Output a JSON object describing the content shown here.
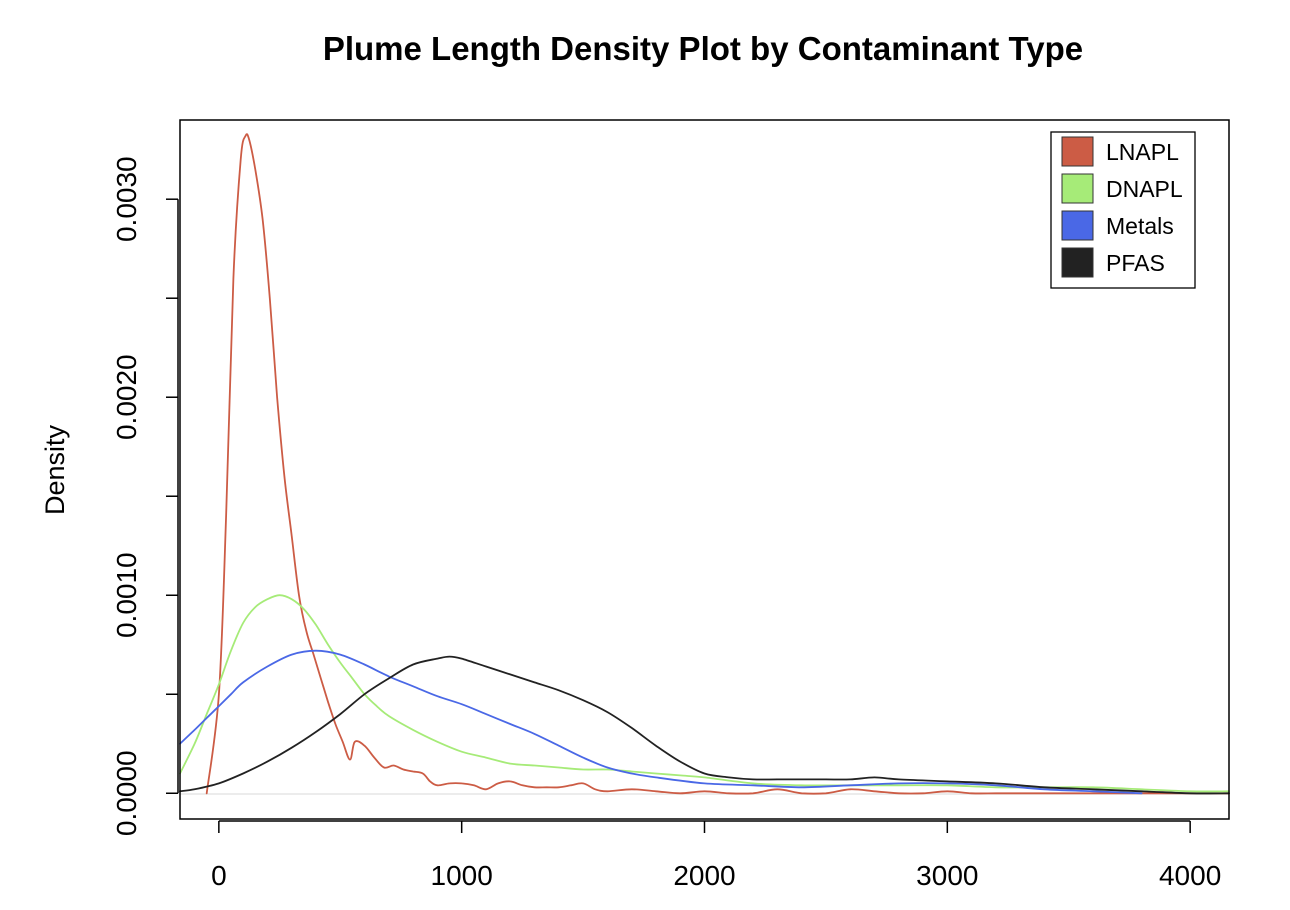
{
  "chart_data": {
    "type": "line",
    "title": "Plume Length Density Plot by Contaminant Type",
    "xlabel": "",
    "ylabel": "Density",
    "xlim": [
      -160,
      4160
    ],
    "ylim": [
      -0.00013,
      0.0034
    ],
    "x_ticks": [
      0,
      1000,
      2000,
      3000,
      4000
    ],
    "x_tick_labels": [
      "0",
      "1000",
      "2000",
      "3000",
      "4000"
    ],
    "y_ticks": [
      0.0,
      0.0005,
      0.001,
      0.0015,
      0.002,
      0.0025,
      0.003
    ],
    "y_tick_labels": [
      "0.0000",
      "",
      "0.0010",
      "",
      "0.0020",
      "",
      "0.0030"
    ],
    "grid": false,
    "zero_line": true,
    "legend_position": "top-right",
    "series": [
      {
        "name": "LNAPL",
        "color": "#CC5C45",
        "x": [
          -50,
          0,
          30,
          60,
          90,
          110,
          125,
          150,
          180,
          210,
          240,
          270,
          300,
          330,
          360,
          390,
          420,
          450,
          480,
          510,
          540,
          560,
          600,
          640,
          680,
          720,
          760,
          800,
          840,
          870,
          900,
          950,
          1000,
          1050,
          1100,
          1150,
          1200,
          1250,
          1300,
          1350,
          1400,
          1450,
          1500,
          1550,
          1600,
          1700,
          1800,
          1900,
          2000,
          2100,
          2200,
          2300,
          2400,
          2500,
          2600,
          2700,
          2800,
          2900,
          3000,
          3100,
          3200,
          3300,
          3400,
          3500,
          3600,
          3700,
          3800,
          4000,
          4160
        ],
        "y": [
          0.0,
          0.0005,
          0.0014,
          0.0026,
          0.0032,
          0.00332,
          0.0033,
          0.00315,
          0.0029,
          0.0025,
          0.002,
          0.0016,
          0.0013,
          0.001,
          0.00082,
          0.0007,
          0.00058,
          0.00046,
          0.00035,
          0.00026,
          0.00017,
          0.00026,
          0.00024,
          0.00018,
          0.00013,
          0.00014,
          0.00012,
          0.00011,
          0.0001,
          6e-05,
          4e-05,
          5e-05,
          5e-05,
          4e-05,
          2e-05,
          5e-05,
          6e-05,
          4e-05,
          3e-05,
          3e-05,
          3e-05,
          4e-05,
          5e-05,
          2e-05,
          1e-05,
          2e-05,
          1e-05,
          0.0,
          1e-05,
          0.0,
          0.0,
          2e-05,
          0.0,
          0.0,
          2e-05,
          1e-05,
          0.0,
          0.0,
          1e-05,
          0.0,
          0.0,
          0.0,
          0.0,
          0.0,
          0.0,
          0.0,
          0.0,
          0.0,
          0.0
        ]
      },
      {
        "name": "DNAPL",
        "color": "#A6EB78",
        "x": [
          -160,
          -100,
          -50,
          0,
          50,
          100,
          150,
          200,
          250,
          300,
          350,
          400,
          450,
          500,
          550,
          600,
          650,
          700,
          800,
          900,
          1000,
          1100,
          1200,
          1300,
          1400,
          1500,
          1600,
          1700,
          1800,
          1900,
          2000,
          2200,
          2400,
          2600,
          2800,
          3000,
          3200,
          3400,
          3600,
          3800,
          4000,
          4160
        ],
        "y": [
          0.0001,
          0.00025,
          0.0004,
          0.00055,
          0.00072,
          0.00086,
          0.00094,
          0.00098,
          0.001,
          0.00098,
          0.00093,
          0.00085,
          0.00075,
          0.00066,
          0.00058,
          0.0005,
          0.00044,
          0.00039,
          0.00032,
          0.00026,
          0.00021,
          0.00018,
          0.00015,
          0.00014,
          0.00013,
          0.00012,
          0.00012,
          0.00011,
          0.0001,
          9e-05,
          8e-05,
          5e-05,
          4e-05,
          4e-05,
          4e-05,
          4e-05,
          3e-05,
          3e-05,
          3e-05,
          2e-05,
          1e-05,
          1e-05
        ]
      },
      {
        "name": "Metals",
        "color": "#4A68E6",
        "x": [
          -160,
          -100,
          -50,
          0,
          50,
          100,
          200,
          300,
          400,
          500,
          600,
          700,
          800,
          900,
          1000,
          1100,
          1200,
          1300,
          1400,
          1500,
          1600,
          1700,
          1800,
          2000,
          2200,
          2400,
          2600,
          2800,
          3000,
          3200,
          3400,
          3600,
          3800
        ],
        "y": [
          0.00025,
          0.00032,
          0.00038,
          0.00044,
          0.0005,
          0.00056,
          0.00064,
          0.0007,
          0.00072,
          0.0007,
          0.00065,
          0.00059,
          0.00054,
          0.00049,
          0.00045,
          0.0004,
          0.00035,
          0.0003,
          0.00024,
          0.00018,
          0.00013,
          0.0001,
          8e-05,
          5e-05,
          4e-05,
          3e-05,
          4e-05,
          5e-05,
          5e-05,
          4e-05,
          2e-05,
          1e-05,
          0.0
        ]
      },
      {
        "name": "PFAS",
        "color": "#222222",
        "x": [
          -160,
          -100,
          0,
          100,
          200,
          300,
          400,
          500,
          600,
          700,
          800,
          900,
          950,
          1000,
          1100,
          1200,
          1300,
          1400,
          1500,
          1600,
          1700,
          1800,
          1900,
          2000,
          2100,
          2200,
          2300,
          2400,
          2500,
          2600,
          2700,
          2800,
          3000,
          3200,
          3400,
          3600,
          3800,
          4000,
          4160
        ],
        "y": [
          1e-05,
          2e-05,
          5e-05,
          0.0001,
          0.00016,
          0.00023,
          0.00031,
          0.0004,
          0.0005,
          0.00058,
          0.00065,
          0.00068,
          0.00069,
          0.00068,
          0.00064,
          0.0006,
          0.00056,
          0.00052,
          0.00047,
          0.00041,
          0.00033,
          0.00024,
          0.00016,
          0.0001,
          8e-05,
          7e-05,
          7e-05,
          7e-05,
          7e-05,
          7e-05,
          8e-05,
          7e-05,
          6e-05,
          5e-05,
          3e-05,
          2e-05,
          1e-05,
          0.0,
          0.0
        ]
      }
    ]
  }
}
